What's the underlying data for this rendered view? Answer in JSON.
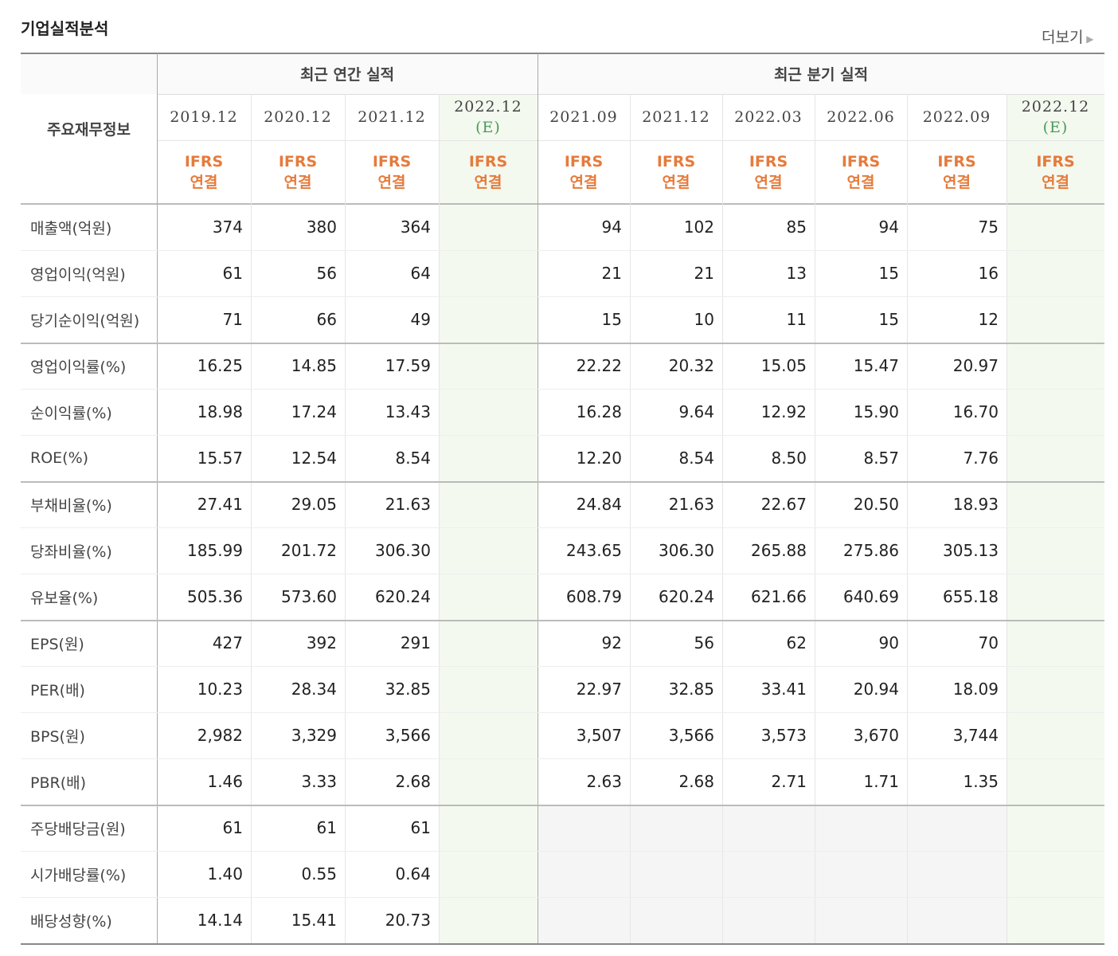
{
  "header": {
    "title": "기업실적분석",
    "more": "더보기"
  },
  "table": {
    "row_header": "주요재무정보",
    "groups": [
      {
        "label": "최근 연간 실적",
        "columns": [
          {
            "period": "2019.12",
            "standard": "IFRS",
            "basis": "연결"
          },
          {
            "period": "2020.12",
            "standard": "IFRS",
            "basis": "연결"
          },
          {
            "period": "2021.12",
            "standard": "IFRS",
            "basis": "연결"
          },
          {
            "period": "2022.12",
            "note": "(E)",
            "standard": "IFRS",
            "basis": "연결"
          }
        ]
      },
      {
        "label": "최근 분기 실적",
        "columns": [
          {
            "period": "2021.09",
            "standard": "IFRS",
            "basis": "연결"
          },
          {
            "period": "2021.12",
            "standard": "IFRS",
            "basis": "연결"
          },
          {
            "period": "2022.03",
            "standard": "IFRS",
            "basis": "연결"
          },
          {
            "period": "2022.06",
            "standard": "IFRS",
            "basis": "연결"
          },
          {
            "period": "2022.09",
            "standard": "IFRS",
            "basis": "연결"
          },
          {
            "period": "2022.12",
            "note": "(E)",
            "standard": "IFRS",
            "basis": "연결"
          }
        ]
      }
    ],
    "rows": [
      {
        "label": "매출액(억원)",
        "annual": [
          "374",
          "380",
          "364"
        ],
        "quarterly": [
          "94",
          "102",
          "85",
          "94",
          "75"
        ]
      },
      {
        "label": "영업이익(억원)",
        "annual": [
          "61",
          "56",
          "64"
        ],
        "quarterly": [
          "21",
          "21",
          "13",
          "15",
          "16"
        ]
      },
      {
        "label": "당기순이익(억원)",
        "annual": [
          "71",
          "66",
          "49"
        ],
        "quarterly": [
          "15",
          "10",
          "11",
          "15",
          "12"
        ]
      },
      {
        "label": "영업이익률(%)",
        "annual": [
          "16.25",
          "14.85",
          "17.59"
        ],
        "quarterly": [
          "22.22",
          "20.32",
          "15.05",
          "15.47",
          "20.97"
        ]
      },
      {
        "label": "순이익률(%)",
        "annual": [
          "18.98",
          "17.24",
          "13.43"
        ],
        "quarterly": [
          "16.28",
          "9.64",
          "12.92",
          "15.90",
          "16.70"
        ]
      },
      {
        "label": "ROE(%)",
        "annual": [
          "15.57",
          "12.54",
          "8.54"
        ],
        "quarterly": [
          "12.20",
          "8.54",
          "8.50",
          "8.57",
          "7.76"
        ]
      },
      {
        "label": "부채비율(%)",
        "annual": [
          "27.41",
          "29.05",
          "21.63"
        ],
        "quarterly": [
          "24.84",
          "21.63",
          "22.67",
          "20.50",
          "18.93"
        ]
      },
      {
        "label": "당좌비율(%)",
        "annual": [
          "185.99",
          "201.72",
          "306.30"
        ],
        "quarterly": [
          "243.65",
          "306.30",
          "265.88",
          "275.86",
          "305.13"
        ]
      },
      {
        "label": "유보율(%)",
        "annual": [
          "505.36",
          "573.60",
          "620.24"
        ],
        "quarterly": [
          "608.79",
          "620.24",
          "621.66",
          "640.69",
          "655.18"
        ]
      },
      {
        "label": "EPS(원)",
        "annual": [
          "427",
          "392",
          "291"
        ],
        "quarterly": [
          "92",
          "56",
          "62",
          "90",
          "70"
        ]
      },
      {
        "label": "PER(배)",
        "annual": [
          "10.23",
          "28.34",
          "32.85"
        ],
        "quarterly": [
          "22.97",
          "32.85",
          "33.41",
          "20.94",
          "18.09"
        ]
      },
      {
        "label": "BPS(원)",
        "annual": [
          "2,982",
          "3,329",
          "3,566"
        ],
        "quarterly": [
          "3,507",
          "3,566",
          "3,573",
          "3,670",
          "3,744"
        ]
      },
      {
        "label": "PBR(배)",
        "annual": [
          "1.46",
          "3.33",
          "2.68"
        ],
        "quarterly": [
          "2.63",
          "2.68",
          "2.71",
          "1.71",
          "1.35"
        ]
      },
      {
        "label": "주당배당금(원)",
        "annual": [
          "61",
          "61",
          "61"
        ]
      },
      {
        "label": "시가배당률(%)",
        "annual": [
          "1.40",
          "0.55",
          "0.64"
        ]
      },
      {
        "label": "배당성향(%)",
        "annual": [
          "14.14",
          "15.41",
          "20.73"
        ]
      }
    ]
  }
}
